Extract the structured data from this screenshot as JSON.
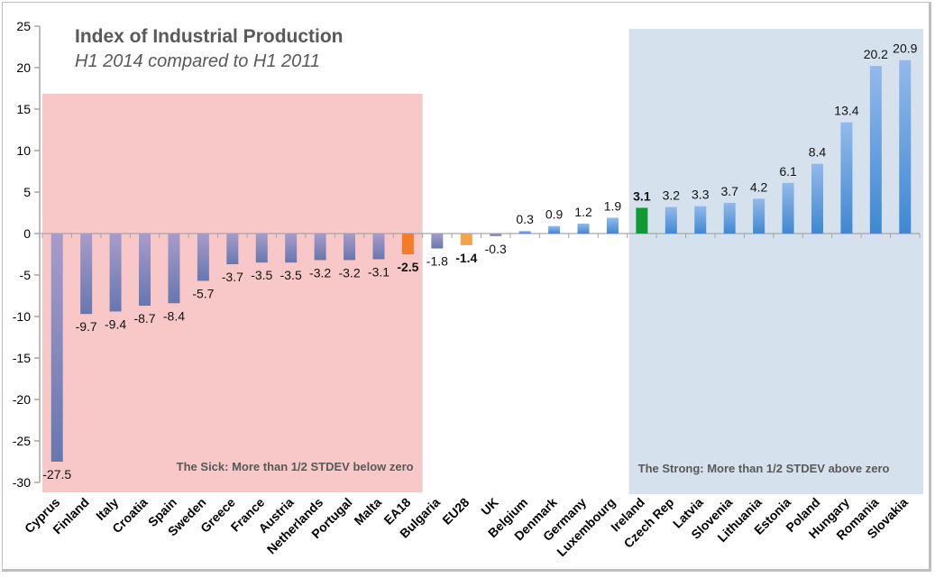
{
  "chart_data": {
    "type": "bar",
    "title": "Index of Industrial Production",
    "subtitle": "H1 2014 compared to H1 2011",
    "xlabel": "",
    "ylabel": "",
    "ylim": [
      -30,
      25
    ],
    "yticks": [
      25,
      20,
      15,
      10,
      5,
      0,
      -5,
      -10,
      -15,
      -20,
      -25,
      -30
    ],
    "grid": false,
    "legend": "none",
    "categories": [
      "Cyprus",
      "Finland",
      "Italy",
      "Croatia",
      "Spain",
      "Sweden",
      "Greece",
      "France",
      "Austria",
      "Netherlands",
      "Portugal",
      "Malta",
      "EA18",
      "Bulgaria",
      "EU28",
      "UK",
      "Belgium",
      "Denmark",
      "Germany",
      "Luxembourg",
      "Ireland",
      "Czech Rep",
      "Latvia",
      "Slovenia",
      "Lithuania",
      "Estonia",
      "Poland",
      "Hungary",
      "Romania",
      "Slovakia"
    ],
    "values": [
      -27.5,
      -9.7,
      -9.4,
      -8.7,
      -8.4,
      -5.7,
      -3.7,
      -3.5,
      -3.5,
      -3.2,
      -3.2,
      -3.1,
      -2.5,
      -1.8,
      -1.4,
      -0.3,
      0.3,
      0.9,
      1.2,
      1.9,
      3.1,
      3.2,
      3.3,
      3.7,
      4.2,
      6.1,
      8.4,
      13.4,
      20.2,
      20.9
    ],
    "data_labels": [
      "-27.5",
      "-9.7",
      "-9.4",
      "-8.7",
      "-8.4",
      "-5.7",
      "-3.7",
      "-3.5",
      "-3.5",
      "-3.2",
      "-3.2",
      "-3.1",
      "-2.5",
      "-1.8",
      "-1.4",
      "-0.3",
      "0.3",
      "0.9",
      "1.2",
      "1.9",
      "3.1",
      "3.2",
      "3.3",
      "3.7",
      "4.2",
      "6.1",
      "8.4",
      "13.4",
      "20.2",
      "20.9"
    ],
    "highlights": {
      "EA18": "#f47b2a",
      "EU28": "#f9a049",
      "Ireland": "#119a32"
    },
    "annotations": [
      {
        "text": "The Sick: More than 1/2 STDEV below zero",
        "region_color": "#f8c8c8",
        "from_category": "Cyprus",
        "to_category": "EA18"
      },
      {
        "text": "The Strong: More than 1/2 STDEV above zero",
        "region_color": "#d5e1ec",
        "from_category": "Ireland",
        "to_category": "Slovakia"
      }
    ],
    "colors": {
      "negative_top": "#a89cc8",
      "negative_bottom": "#6677b0",
      "positive_top": "#93b9ea",
      "positive_bottom": "#3f88d1",
      "highlight_label_ea18": "#f06a1a",
      "highlight_label_eu28": "#f06a1a",
      "highlight_label_ireland": "#119a32"
    }
  }
}
